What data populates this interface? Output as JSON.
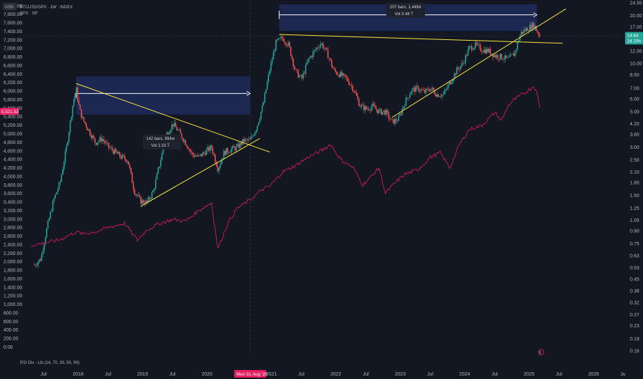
{
  "header": {
    "currency": "USD",
    "symbol_line": "BTCUSD/SPX · 1W · INDEX",
    "overlay_line": "SPX · SP",
    "indicator_line": "RSI Div - Lib (14, 70, 30, 50, 90)"
  },
  "colors": {
    "background": "#131722",
    "candle_up": "#26a69a",
    "candle_down": "#ef5350",
    "spx_line": "#c2185b",
    "trendline": "#ffeb3b",
    "range_box": "#1e2a5a",
    "measure_arrow": "#ffffff",
    "current_tag": "#26a69a",
    "left_tag": "#e91e63",
    "crosshair_tag": "#e91e63"
  },
  "chart_data": {
    "type": "line",
    "title": "BTCUSD/SPX · 1W · INDEX",
    "left_axis": {
      "ticks": [
        "0.00",
        "200.00",
        "400.00",
        "600.00",
        "800.00",
        "1,000.00",
        "1,200.00",
        "1,400.00",
        "1,600.00",
        "1,800.00",
        "2,000.00",
        "2,200.00",
        "2,400.00",
        "2,600.00",
        "2,800.00",
        "3,000.00",
        "3,200.00",
        "3,400.00",
        "3,600.00",
        "3,800.00",
        "4,000.00",
        "4,200.00",
        "4,400.00",
        "4,600.00",
        "4,800.00",
        "5,000.00",
        "5,200.00",
        "5,400.00",
        "5,600.00",
        "5,800.00",
        "6,000.00",
        "6,200.00",
        "6,400.00",
        "6,600.00",
        "6,800.00",
        "7,000.00",
        "7,200.00",
        "7,400.00",
        "7,600.00",
        "7,800.00",
        "8,000.00"
      ],
      "range": [
        0,
        8000
      ]
    },
    "right_axis": {
      "scale": "log",
      "ticks": [
        "0.16",
        "0.19",
        "0.23",
        "0.27",
        "0.32",
        "0.38",
        "0.45",
        "0.53",
        "0.63",
        "0.75",
        "0.90",
        "1.05",
        "1.25",
        "1.50",
        "1.80",
        "2.10",
        "2.50",
        "3.00",
        "3.60",
        "4.20",
        "5.00",
        "6.00",
        "7.00",
        "8.50",
        "10.00",
        "12.00",
        "14.00",
        "17.00",
        "20.00",
        "24.00"
      ]
    },
    "x_axis": {
      "labels": [
        "Jul",
        "2018",
        "Jul",
        "2019",
        "Jul",
        "2020",
        "Jul",
        "2021",
        "Jul",
        "2022",
        "Jul",
        "2023",
        "Jul",
        "2024",
        "Jul",
        "2025",
        "Jul",
        "2026",
        "Ju"
      ],
      "crosshair_label": "Mon 31 Aug '20"
    },
    "series": [
      {
        "name": "BTCUSD/SPX",
        "style": "candles",
        "right_axis_points": [
          [
            2017.35,
            0.55
          ],
          [
            2017.45,
            0.6
          ],
          [
            2017.55,
            0.95
          ],
          [
            2017.65,
            1.4
          ],
          [
            2017.75,
            1.8
          ],
          [
            2017.85,
            3.0
          ],
          [
            2017.95,
            5.6
          ],
          [
            2018.0,
            7.0
          ],
          [
            2018.05,
            5.2
          ],
          [
            2018.1,
            4.5
          ],
          [
            2018.2,
            3.8
          ],
          [
            2018.3,
            3.2
          ],
          [
            2018.4,
            3.4
          ],
          [
            2018.5,
            3.0
          ],
          [
            2018.6,
            2.8
          ],
          [
            2018.7,
            2.6
          ],
          [
            2018.8,
            2.5
          ],
          [
            2018.9,
            1.6
          ],
          [
            2019.0,
            1.38
          ],
          [
            2019.1,
            1.35
          ],
          [
            2019.2,
            1.6
          ],
          [
            2019.3,
            2.4
          ],
          [
            2019.4,
            3.6
          ],
          [
            2019.5,
            4.2
          ],
          [
            2019.6,
            3.7
          ],
          [
            2019.7,
            3.2
          ],
          [
            2019.8,
            2.7
          ],
          [
            2019.9,
            2.6
          ],
          [
            2020.0,
            2.8
          ],
          [
            2020.1,
            3.0
          ],
          [
            2020.2,
            2.2
          ],
          [
            2020.3,
            2.8
          ],
          [
            2020.4,
            2.9
          ],
          [
            2020.5,
            3.0
          ],
          [
            2020.6,
            3.3
          ],
          [
            2020.7,
            3.3
          ],
          [
            2020.8,
            4.0
          ],
          [
            2020.9,
            5.5
          ],
          [
            2021.0,
            9.0
          ],
          [
            2021.1,
            13.5
          ],
          [
            2021.2,
            14.5
          ],
          [
            2021.3,
            13.0
          ],
          [
            2021.4,
            9.0
          ],
          [
            2021.5,
            8.0
          ],
          [
            2021.6,
            10.5
          ],
          [
            2021.7,
            12.0
          ],
          [
            2021.8,
            13.5
          ],
          [
            2021.9,
            11.5
          ],
          [
            2022.0,
            9.0
          ],
          [
            2022.1,
            8.5
          ],
          [
            2022.2,
            8.0
          ],
          [
            2022.3,
            7.0
          ],
          [
            2022.4,
            5.5
          ],
          [
            2022.5,
            5.2
          ],
          [
            2022.6,
            5.4
          ],
          [
            2022.7,
            5.0
          ],
          [
            2022.8,
            5.0
          ],
          [
            2022.9,
            4.3
          ],
          [
            2023.0,
            4.5
          ],
          [
            2023.1,
            5.7
          ],
          [
            2023.2,
            6.8
          ],
          [
            2023.3,
            7.0
          ],
          [
            2023.4,
            6.6
          ],
          [
            2023.5,
            7.0
          ],
          [
            2023.6,
            6.4
          ],
          [
            2023.7,
            6.4
          ],
          [
            2023.8,
            7.6
          ],
          [
            2023.9,
            9.0
          ],
          [
            2024.0,
            10.0
          ],
          [
            2024.1,
            12.5
          ],
          [
            2024.2,
            13.0
          ],
          [
            2024.3,
            12.2
          ],
          [
            2024.4,
            12.0
          ],
          [
            2024.5,
            11.2
          ],
          [
            2024.6,
            11.0
          ],
          [
            2024.7,
            10.6
          ],
          [
            2024.8,
            11.5
          ],
          [
            2024.9,
            15.5
          ],
          [
            2025.0,
            16.5
          ],
          [
            2025.1,
            17.5
          ],
          [
            2025.15,
            16.0
          ],
          [
            2025.2,
            14.84
          ]
        ]
      },
      {
        "name": "SPX",
        "style": "line",
        "left_axis_points": [
          [
            2017.3,
            2380
          ],
          [
            2017.5,
            2430
          ],
          [
            2017.75,
            2520
          ],
          [
            2018.0,
            2700
          ],
          [
            2018.1,
            2650
          ],
          [
            2018.3,
            2700
          ],
          [
            2018.5,
            2800
          ],
          [
            2018.75,
            2900
          ],
          [
            2018.95,
            2500
          ],
          [
            2019.1,
            2750
          ],
          [
            2019.3,
            2900
          ],
          [
            2019.5,
            2990
          ],
          [
            2019.7,
            2950
          ],
          [
            2019.9,
            3200
          ],
          [
            2020.1,
            3380
          ],
          [
            2020.2,
            2300
          ],
          [
            2020.35,
            2900
          ],
          [
            2020.5,
            3250
          ],
          [
            2020.7,
            3450
          ],
          [
            2020.9,
            3700
          ],
          [
            2021.0,
            3760
          ],
          [
            2021.2,
            4100
          ],
          [
            2021.4,
            4250
          ],
          [
            2021.6,
            4450
          ],
          [
            2021.8,
            4600
          ],
          [
            2021.95,
            4750
          ],
          [
            2022.1,
            4400
          ],
          [
            2022.3,
            4200
          ],
          [
            2022.45,
            3800
          ],
          [
            2022.55,
            3950
          ],
          [
            2022.7,
            4200
          ],
          [
            2022.8,
            3600
          ],
          [
            2022.95,
            3850
          ],
          [
            2023.1,
            4050
          ],
          [
            2023.3,
            4150
          ],
          [
            2023.5,
            4450
          ],
          [
            2023.65,
            4550
          ],
          [
            2023.8,
            4200
          ],
          [
            2023.95,
            4750
          ],
          [
            2024.1,
            5100
          ],
          [
            2024.3,
            5200
          ],
          [
            2024.5,
            5500
          ],
          [
            2024.6,
            5300
          ],
          [
            2024.7,
            5650
          ],
          [
            2024.8,
            5800
          ],
          [
            2024.95,
            5950
          ],
          [
            2025.05,
            6050
          ],
          [
            2025.1,
            6120
          ],
          [
            2025.15,
            5950
          ],
          [
            2025.2,
            5600
          ]
        ]
      }
    ],
    "annotations": {
      "price_tags": {
        "current_value": "14.84",
        "current_countdown": "2d 20h",
        "left_value": "5,521.53"
      },
      "measure_boxes": [
        {
          "bars": "142 bars, 994w",
          "volume": "Vol 2.33 T",
          "from_x": 2018.0,
          "to_x": 2020.7,
          "low": 4.8,
          "high": 8.3
        },
        {
          "bars": "207 bars, 1,449d",
          "volume": "Vol 3.48 T",
          "from_x": 2021.15,
          "to_x": 2025.15,
          "low": 16.0,
          "high": 23.5
        }
      ],
      "trendlines": [
        {
          "from": [
            2018.0,
            7.5
          ],
          "to": [
            2021.0,
            2.8
          ]
        },
        {
          "from": [
            2019.0,
            1.28
          ],
          "to": [
            2020.85,
            3.4
          ]
        },
        {
          "from": [
            2021.15,
            15.2
          ],
          "to": [
            2025.55,
            13.4
          ]
        },
        {
          "from": [
            2022.9,
            4.6
          ],
          "to": [
            2025.6,
            22.0
          ]
        }
      ],
      "tv_logo_marker": "tradingview"
    }
  }
}
